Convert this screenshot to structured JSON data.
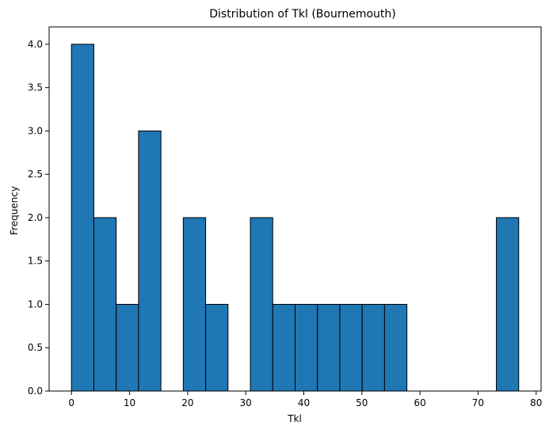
{
  "chart_data": {
    "type": "bar",
    "title": "Distribution of Tkl (Bournemouth)",
    "xlabel": "Tkl",
    "ylabel": "Frequency",
    "bar_color": "#1f77b4",
    "edge_color": "#000000",
    "bins": [
      {
        "x0": 0.0,
        "x1": 3.85,
        "count": 4
      },
      {
        "x0": 3.85,
        "x1": 7.7,
        "count": 2
      },
      {
        "x0": 7.7,
        "x1": 11.55,
        "count": 1
      },
      {
        "x0": 11.55,
        "x1": 15.4,
        "count": 3
      },
      {
        "x0": 15.4,
        "x1": 19.25,
        "count": 0
      },
      {
        "x0": 19.25,
        "x1": 23.1,
        "count": 2
      },
      {
        "x0": 23.1,
        "x1": 26.95,
        "count": 1
      },
      {
        "x0": 26.95,
        "x1": 30.8,
        "count": 0
      },
      {
        "x0": 30.8,
        "x1": 34.65,
        "count": 2
      },
      {
        "x0": 34.65,
        "x1": 38.5,
        "count": 1
      },
      {
        "x0": 38.5,
        "x1": 42.35,
        "count": 1
      },
      {
        "x0": 42.35,
        "x1": 46.2,
        "count": 1
      },
      {
        "x0": 46.2,
        "x1": 50.05,
        "count": 1
      },
      {
        "x0": 50.05,
        "x1": 53.9,
        "count": 1
      },
      {
        "x0": 53.9,
        "x1": 57.75,
        "count": 1
      },
      {
        "x0": 57.75,
        "x1": 61.6,
        "count": 0
      },
      {
        "x0": 61.6,
        "x1": 65.45,
        "count": 0
      },
      {
        "x0": 65.45,
        "x1": 69.3,
        "count": 0
      },
      {
        "x0": 69.3,
        "x1": 73.15,
        "count": 0
      },
      {
        "x0": 73.15,
        "x1": 77.0,
        "count": 2
      }
    ],
    "xlim": [
      -3.85,
      80.85
    ],
    "ylim": [
      0,
      4.2
    ],
    "xticks": [
      0,
      10,
      20,
      30,
      40,
      50,
      60,
      70,
      80
    ],
    "xtick_labels": [
      "0",
      "10",
      "20",
      "30",
      "40",
      "50",
      "60",
      "70",
      "80"
    ],
    "yticks": [
      0,
      0.5,
      1.0,
      1.5,
      2.0,
      2.5,
      3.0,
      3.5,
      4.0
    ],
    "ytick_labels": [
      "0.0",
      "0.5",
      "1.0",
      "1.5",
      "2.0",
      "2.5",
      "3.0",
      "3.5",
      "4.0"
    ],
    "grid": false,
    "legend": "none"
  }
}
